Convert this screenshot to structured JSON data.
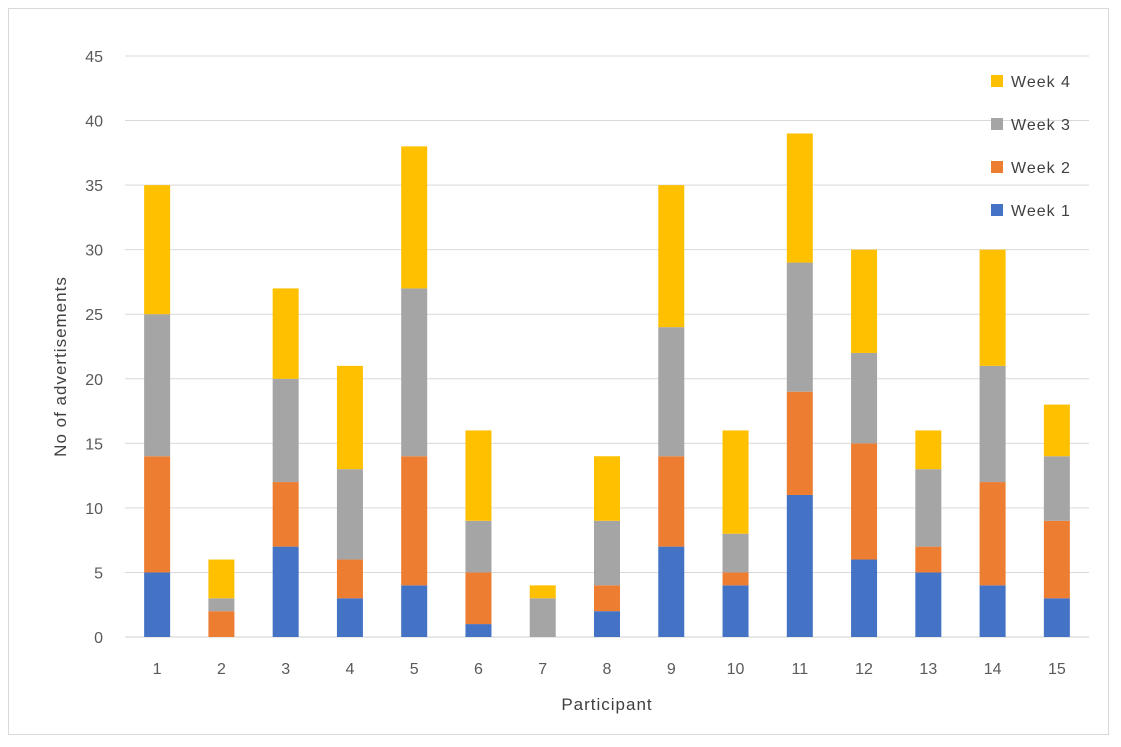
{
  "chart_data": {
    "type": "bar",
    "stacked": true,
    "title": "",
    "xlabel": "Participant",
    "ylabel": "No of advertisements",
    "ylim": [
      0,
      45
    ],
    "yticks": [
      0,
      5,
      10,
      15,
      20,
      25,
      30,
      35,
      40,
      45
    ],
    "grid": true,
    "legend_position": "top-right",
    "categories": [
      "1",
      "2",
      "3",
      "4",
      "5",
      "6",
      "7",
      "8",
      "9",
      "10",
      "11",
      "12",
      "13",
      "14",
      "15"
    ],
    "series": [
      {
        "name": "Week 1",
        "color": "#4472C4",
        "values": [
          5,
          0,
          7,
          3,
          4,
          1,
          0,
          2,
          7,
          4,
          11,
          6,
          5,
          4,
          3
        ]
      },
      {
        "name": "Week 2",
        "color": "#ED7D31",
        "values": [
          9,
          2,
          5,
          3,
          10,
          4,
          0,
          2,
          7,
          1,
          8,
          9,
          2,
          8,
          6
        ]
      },
      {
        "name": "Week 3",
        "color": "#A5A5A5",
        "values": [
          11,
          1,
          8,
          7,
          13,
          4,
          3,
          5,
          10,
          3,
          10,
          7,
          6,
          9,
          5
        ]
      },
      {
        "name": "Week 4",
        "color": "#FFC000",
        "values": [
          10,
          3,
          7,
          8,
          11,
          7,
          1,
          5,
          11,
          8,
          10,
          8,
          3,
          9,
          4
        ]
      }
    ],
    "legend_order": [
      "Week 4",
      "Week 3",
      "Week 2",
      "Week 1"
    ]
  }
}
